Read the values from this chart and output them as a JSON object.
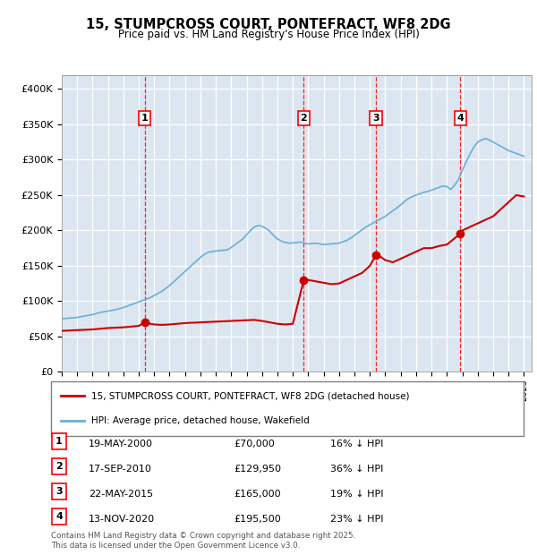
{
  "title": "15, STUMPCROSS COURT, PONTEFRACT, WF8 2DG",
  "subtitle": "Price paid vs. HM Land Registry's House Price Index (HPI)",
  "plot_bg_color": "#dce6f1",
  "ylim": [
    0,
    420000
  ],
  "yticks": [
    0,
    50000,
    100000,
    150000,
    200000,
    250000,
    300000,
    350000,
    400000
  ],
  "xlim_start": 1995,
  "xlim_end": 2025.5,
  "transactions": [
    {
      "num": 1,
      "date": "19-MAY-2000",
      "price": 70000,
      "pct": "16%",
      "year": 2000.38
    },
    {
      "num": 2,
      "date": "17-SEP-2010",
      "price": 129950,
      "pct": "36%",
      "year": 2010.71
    },
    {
      "num": 3,
      "date": "22-MAY-2015",
      "price": 165000,
      "pct": "19%",
      "year": 2015.39
    },
    {
      "num": 4,
      "date": "13-NOV-2020",
      "price": 195500,
      "pct": "23%",
      "year": 2020.87
    }
  ],
  "legend_label_red": "15, STUMPCROSS COURT, PONTEFRACT, WF8 2DG (detached house)",
  "legend_label_blue": "HPI: Average price, detached house, Wakefield",
  "footer": "Contains HM Land Registry data © Crown copyright and database right 2025.\nThis data is licensed under the Open Government Licence v3.0.",
  "hpi_x": [
    1995.0,
    1995.25,
    1995.5,
    1995.75,
    1996.0,
    1996.25,
    1996.5,
    1996.75,
    1997.0,
    1997.25,
    1997.5,
    1997.75,
    1998.0,
    1998.25,
    1998.5,
    1998.75,
    1999.0,
    1999.25,
    1999.5,
    1999.75,
    2000.0,
    2000.25,
    2000.5,
    2000.75,
    2001.0,
    2001.25,
    2001.5,
    2001.75,
    2002.0,
    2002.25,
    2002.5,
    2002.75,
    2003.0,
    2003.25,
    2003.5,
    2003.75,
    2004.0,
    2004.25,
    2004.5,
    2004.75,
    2005.0,
    2005.25,
    2005.5,
    2005.75,
    2006.0,
    2006.25,
    2006.5,
    2006.75,
    2007.0,
    2007.25,
    2007.5,
    2007.75,
    2008.0,
    2008.25,
    2008.5,
    2008.75,
    2009.0,
    2009.25,
    2009.5,
    2009.75,
    2010.0,
    2010.25,
    2010.5,
    2010.75,
    2011.0,
    2011.25,
    2011.5,
    2011.75,
    2012.0,
    2012.25,
    2012.5,
    2012.75,
    2013.0,
    2013.25,
    2013.5,
    2013.75,
    2014.0,
    2014.25,
    2014.5,
    2014.75,
    2015.0,
    2015.25,
    2015.5,
    2015.75,
    2016.0,
    2016.25,
    2016.5,
    2016.75,
    2017.0,
    2017.25,
    2017.5,
    2017.75,
    2018.0,
    2018.25,
    2018.5,
    2018.75,
    2019.0,
    2019.25,
    2019.5,
    2019.75,
    2020.0,
    2020.25,
    2020.5,
    2020.75,
    2021.0,
    2021.25,
    2021.5,
    2021.75,
    2022.0,
    2022.25,
    2022.5,
    2022.75,
    2023.0,
    2023.25,
    2023.5,
    2023.75,
    2024.0,
    2024.25,
    2024.5,
    2024.75,
    2025.0
  ],
  "hpi_y": [
    75000,
    75500,
    76000,
    76500,
    77000,
    78000,
    79000,
    80000,
    81000,
    82500,
    84000,
    85000,
    86000,
    87000,
    88000,
    89500,
    91000,
    93000,
    95000,
    97000,
    99000,
    101000,
    103000,
    105000,
    108000,
    111000,
    114000,
    118000,
    122000,
    127000,
    132000,
    137000,
    142000,
    147000,
    152000,
    157000,
    162000,
    166000,
    169000,
    170000,
    171000,
    171500,
    172000,
    172500,
    176000,
    180000,
    184000,
    188000,
    194000,
    200000,
    205000,
    207000,
    206000,
    203000,
    199000,
    193000,
    188000,
    185000,
    183000,
    182000,
    182500,
    183000,
    183500,
    182000,
    181000,
    181500,
    182000,
    181000,
    180000,
    180500,
    181000,
    181500,
    182000,
    184000,
    186000,
    189000,
    193000,
    197000,
    201000,
    205000,
    208000,
    211000,
    214000,
    217000,
    220000,
    224000,
    228000,
    232000,
    236000,
    241000,
    245000,
    248000,
    250000,
    252000,
    254000,
    255000,
    257000,
    259000,
    261000,
    263000,
    262000,
    258000,
    264000,
    272000,
    285000,
    297000,
    308000,
    318000,
    325000,
    328000,
    330000,
    328000,
    325000,
    322000,
    319000,
    316000,
    313000,
    311000,
    309000,
    307000,
    305000
  ],
  "price_x": [
    1995.0,
    1995.5,
    1996.0,
    1996.5,
    1997.0,
    1997.5,
    1998.0,
    1998.5,
    1999.0,
    1999.5,
    2000.0,
    2000.38,
    2000.75,
    2001.0,
    2001.5,
    2002.0,
    2002.5,
    2003.0,
    2003.5,
    2004.0,
    2004.5,
    2005.0,
    2005.5,
    2006.0,
    2006.5,
    2007.0,
    2007.5,
    2008.0,
    2008.5,
    2009.0,
    2009.5,
    2010.0,
    2010.71,
    2011.0,
    2011.5,
    2012.0,
    2012.5,
    2013.0,
    2013.5,
    2014.0,
    2014.5,
    2015.0,
    2015.39,
    2015.75,
    2016.0,
    2016.5,
    2017.0,
    2017.5,
    2018.0,
    2018.5,
    2019.0,
    2019.5,
    2020.0,
    2020.87,
    2021.0,
    2021.5,
    2022.0,
    2022.5,
    2023.0,
    2023.5,
    2024.0,
    2024.5,
    2025.0
  ],
  "price_y": [
    58000,
    58500,
    59000,
    59500,
    60000,
    61000,
    62000,
    62500,
    63000,
    64000,
    65000,
    70000,
    68000,
    67000,
    66500,
    67000,
    68000,
    69000,
    69500,
    70000,
    70500,
    71000,
    71500,
    72000,
    72500,
    73000,
    73500,
    72000,
    70000,
    68000,
    67000,
    68000,
    129950,
    130000,
    128000,
    126000,
    124000,
    125000,
    130000,
    135000,
    140000,
    150000,
    165000,
    162000,
    158000,
    155000,
    160000,
    165000,
    170000,
    175000,
    175000,
    178000,
    180000,
    195500,
    200000,
    205000,
    210000,
    215000,
    220000,
    230000,
    240000,
    250000,
    248000
  ]
}
